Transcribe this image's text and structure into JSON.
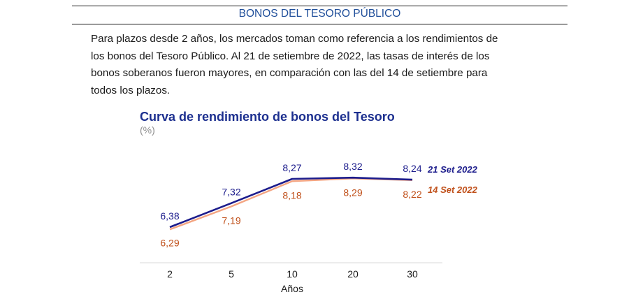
{
  "header": {
    "section_title": "BONOS DEL TESORO PÚBLICO"
  },
  "body": {
    "lines": [
      "Para plazos desde 2 años, los mercados toman como referencia a los rendimientos de",
      "los bonos del Tesoro Público. Al 21 de setiembre de 2022, las tasas de interés de los",
      "bonos soberanos fueron mayores, en comparación con las del 14 de setiembre para",
      "todos los plazos."
    ]
  },
  "chart_data": {
    "type": "line",
    "title": "Curva de rendimiento de bonos del Tesoro",
    "subtitle": "(%)",
    "xlabel": "Años",
    "ylabel": "",
    "categories": [
      "2",
      "5",
      "10",
      "20",
      "30"
    ],
    "ylim": [
      6.0,
      8.6
    ],
    "grid": false,
    "legend": "inline-right",
    "series": [
      {
        "name": "21 Set 2022",
        "values": [
          6.38,
          7.32,
          8.27,
          8.32,
          8.24
        ],
        "labels": [
          "6,38",
          "7,32",
          "8,27",
          "8,32",
          "8,24"
        ],
        "color": "#1c1c8c"
      },
      {
        "name": "14 Set 2022",
        "values": [
          6.29,
          7.19,
          8.18,
          8.29,
          8.22
        ],
        "labels": [
          "6,29",
          "7,19",
          "8,18",
          "8,29",
          "8,22"
        ],
        "color": "#f4a582"
      }
    ],
    "label_colors": {
      "21 Set 2022": "#1c1c8c",
      "14 Set 2022": "#c0501a"
    }
  }
}
